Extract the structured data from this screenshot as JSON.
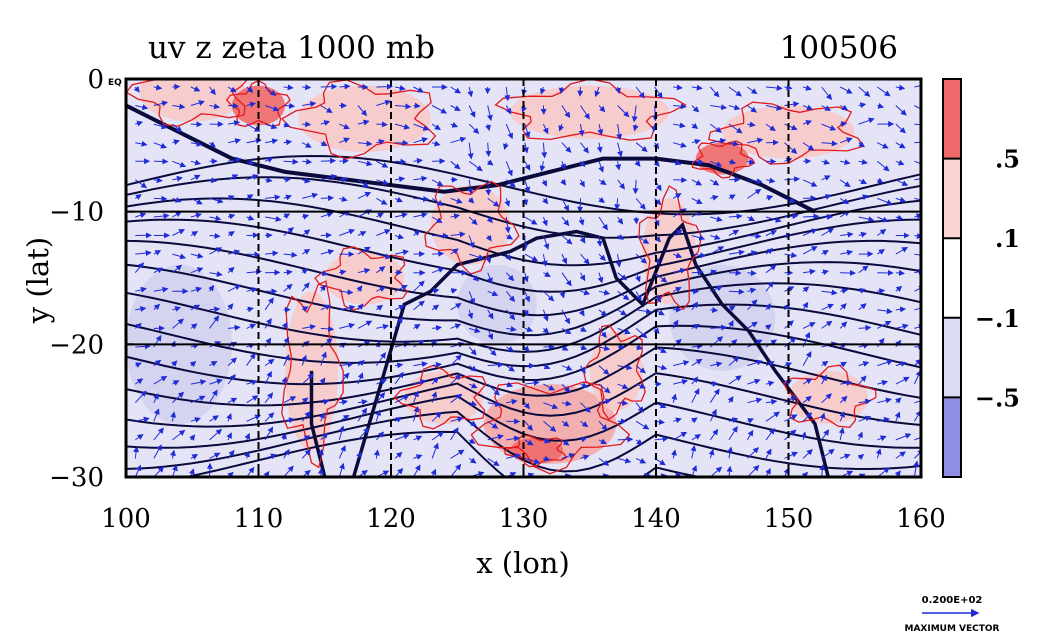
{
  "chart_data": {
    "type": "heatmap",
    "title": "uv z zeta 1000 mb",
    "date_label": "100506",
    "xlabel": "x (lon)",
    "ylabel": "y (lat)",
    "xlim": [
      100,
      160
    ],
    "ylim": [
      -30,
      0
    ],
    "x_ticks": [
      100,
      110,
      120,
      130,
      140,
      150,
      160
    ],
    "y_ticks": [
      0,
      -10,
      -20,
      -30
    ],
    "y_tick_labels": [
      "0",
      "−10",
      "−20",
      "−30"
    ],
    "y_tick_suffix_at_top": "EQ",
    "grid": true,
    "colorbar": {
      "levels": [
        ".5",
        ".1",
        "−.1",
        "−.5"
      ],
      "colors": [
        "#ef6a6a",
        "#f9d4d4",
        "#ffffff",
        "#dcdcf4",
        "#8f8fe4"
      ]
    },
    "colors": {
      "positive_contour": "#e31a1c",
      "negative_fill": "#dcdcf4",
      "positive_fill": "#f7c9c9",
      "geopotential_contour": "#0a0a3c",
      "vector": "#1f2bd6"
    },
    "vector_legend": {
      "value": "0.200E+02",
      "label": "MAXIMUM VECTOR"
    }
  }
}
